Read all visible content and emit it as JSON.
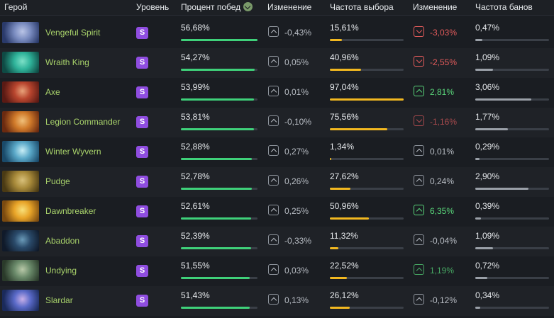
{
  "headers": {
    "hero": "Герой",
    "tier": "Уровень",
    "winrate": "Процент побед",
    "winrate_change": "Изменение",
    "pickrate": "Частота выбора",
    "pickrate_change": "Изменение",
    "banrate": "Частота банов"
  },
  "colors": {
    "winrate_bar": "#3fd17a",
    "pickrate_bar": "#f2b820",
    "banrate_bar": "#9aa0a8",
    "hero_name": "#a9d36b",
    "tier_badge": "#8f4de0"
  },
  "rows": [
    {
      "name": "Vengeful Spirit",
      "tier": "S",
      "winrate": "56,68%",
      "winrate_level": 1.0,
      "wr_change": "-0,43%",
      "wr_change_state": "neutral",
      "pickrate": "15,61%",
      "pickrate_level": 0.16,
      "pr_change": "-3,03%",
      "pr_change_state": "neg",
      "banrate": "0,47%",
      "banrate_level": 0.1,
      "portrait_colors": [
        "#2a3a6a",
        "#7a8cc0",
        "#b9c4e6"
      ]
    },
    {
      "name": "Wraith King",
      "tier": "S",
      "winrate": "54,27%",
      "winrate_level": 0.96,
      "wr_change": "0,05%",
      "wr_change_state": "neutral",
      "pickrate": "40,96%",
      "pickrate_level": 0.42,
      "pr_change": "-2,55%",
      "pr_change_state": "neg",
      "banrate": "1,09%",
      "banrate_level": 0.24,
      "portrait_colors": [
        "#0f4a44",
        "#2fb39a",
        "#7de0c7"
      ]
    },
    {
      "name": "Axe",
      "tier": "S",
      "winrate": "53,99%",
      "winrate_level": 0.95,
      "wr_change": "0,01%",
      "wr_change_state": "neutral",
      "pickrate": "97,04%",
      "pickrate_level": 1.0,
      "pr_change": "2,81%",
      "pr_change_state": "pos",
      "banrate": "3,06%",
      "banrate_level": 0.76,
      "portrait_colors": [
        "#5a1a14",
        "#b8452e",
        "#e8a27a"
      ]
    },
    {
      "name": "Legion Commander",
      "tier": "S",
      "winrate": "53,81%",
      "winrate_level": 0.95,
      "wr_change": "-0,10%",
      "wr_change_state": "neutral",
      "pickrate": "75,56%",
      "pickrate_level": 0.78,
      "pr_change": "-1,16%",
      "pr_change_state": "neg-dim",
      "banrate": "1,77%",
      "banrate_level": 0.44,
      "portrait_colors": [
        "#6a2a10",
        "#d07a2a",
        "#f0c07a"
      ]
    },
    {
      "name": "Winter Wyvern",
      "tier": "S",
      "winrate": "52,88%",
      "winrate_level": 0.93,
      "wr_change": "0,27%",
      "wr_change_state": "neutral",
      "pickrate": "1,34%",
      "pickrate_level": 0.02,
      "pr_change": "0,01%",
      "pr_change_state": "neutral",
      "banrate": "0,29%",
      "banrate_level": 0.06,
      "portrait_colors": [
        "#1a4a6a",
        "#5aa8c8",
        "#c8eef6"
      ]
    },
    {
      "name": "Pudge",
      "tier": "S",
      "winrate": "52,78%",
      "winrate_level": 0.93,
      "wr_change": "0,26%",
      "wr_change_state": "neutral",
      "pickrate": "27,62%",
      "pickrate_level": 0.28,
      "pr_change": "0,24%",
      "pr_change_state": "neutral",
      "banrate": "2,90%",
      "banrate_level": 0.72,
      "portrait_colors": [
        "#4a3a14",
        "#a88a3a",
        "#d8c07a"
      ]
    },
    {
      "name": "Dawnbreaker",
      "tier": "S",
      "winrate": "52,61%",
      "winrate_level": 0.92,
      "wr_change": "0,25%",
      "wr_change_state": "neutral",
      "pickrate": "50,96%",
      "pickrate_level": 0.53,
      "pr_change": "6,35%",
      "pr_change_state": "pos",
      "banrate": "0,39%",
      "banrate_level": 0.08,
      "portrait_colors": [
        "#7a4a10",
        "#e8a428",
        "#f8e07a"
      ]
    },
    {
      "name": "Abaddon",
      "tier": "S",
      "winrate": "52,39%",
      "winrate_level": 0.92,
      "wr_change": "-0,33%",
      "wr_change_state": "neutral",
      "pickrate": "11,32%",
      "pickrate_level": 0.12,
      "pr_change": "-0,04%",
      "pr_change_state": "neutral",
      "banrate": "1,09%",
      "banrate_level": 0.24,
      "portrait_colors": [
        "#101a2a",
        "#2a4a6a",
        "#6a9ab8"
      ]
    },
    {
      "name": "Undying",
      "tier": "S",
      "winrate": "51,55%",
      "winrate_level": 0.9,
      "wr_change": "0,03%",
      "wr_change_state": "neutral",
      "pickrate": "22,52%",
      "pickrate_level": 0.23,
      "pr_change": "1,19%",
      "pr_change_state": "pos-dim",
      "banrate": "0,72%",
      "banrate_level": 0.16,
      "portrait_colors": [
        "#2a3a2a",
        "#6a8a6a",
        "#b8c8a8"
      ]
    },
    {
      "name": "Slardar",
      "tier": "S",
      "winrate": "51,43%",
      "winrate_level": 0.9,
      "wr_change": "0,13%",
      "wr_change_state": "neutral",
      "pickrate": "26,12%",
      "pickrate_level": 0.27,
      "pr_change": "-0,12%",
      "pr_change_state": "neutral",
      "banrate": "0,34%",
      "banrate_level": 0.07,
      "portrait_colors": [
        "#1a2a5a",
        "#5a6ac8",
        "#c8b0e8"
      ]
    }
  ]
}
